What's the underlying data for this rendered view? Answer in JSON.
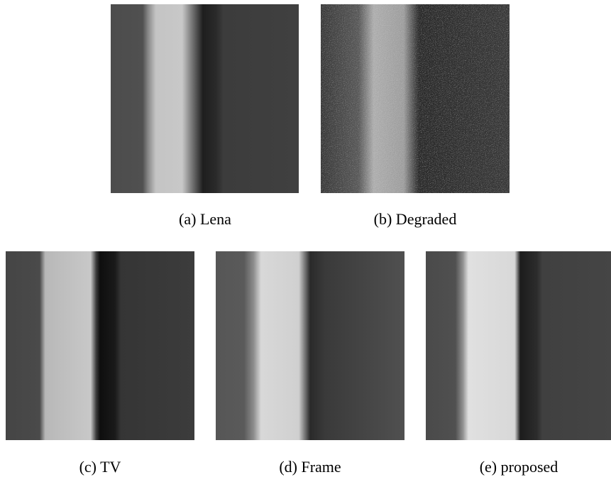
{
  "figure": {
    "panels": [
      {
        "caption": "(a) Lena"
      },
      {
        "caption": "(b) Degraded"
      },
      {
        "caption": "(c) TV"
      },
      {
        "caption": "(d) Frame"
      },
      {
        "caption": "(e) proposed"
      }
    ]
  }
}
